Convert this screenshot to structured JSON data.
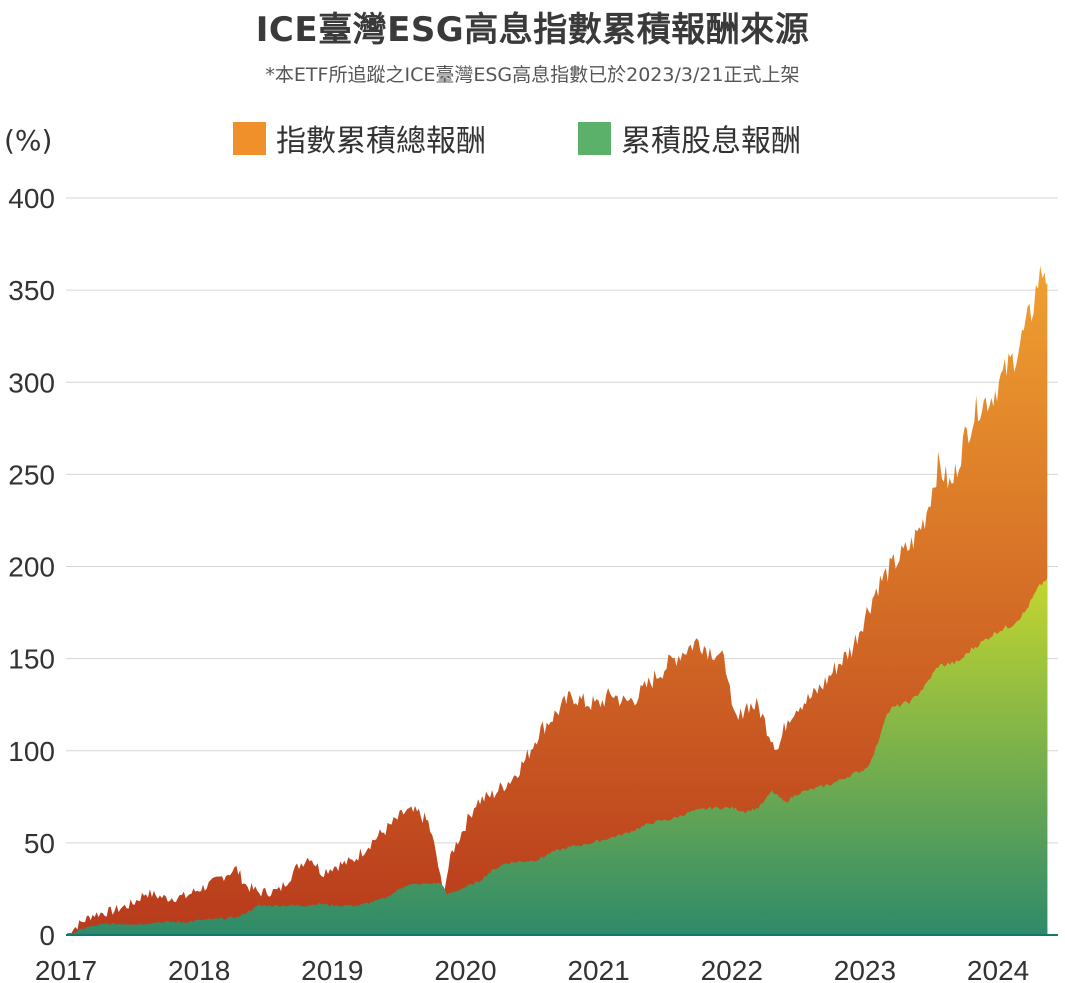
{
  "title": "ICE臺灣ESG高息指數累積報酬來源",
  "subtitle": "*本ETF所追蹤之ICE臺灣ESG高息指數已於2023/3/21正式上架",
  "colors": {
    "total_top": "#F0A030",
    "total_bottom": "#B83A1C",
    "div_top": "#C4D62E",
    "div_bottom": "#2E8A6A",
    "grid": "#D6D6D6",
    "baseline": "#0E7A6E"
  },
  "chart_data": {
    "type": "area",
    "unit_label": "(%)",
    "ylim": [
      0,
      400
    ],
    "yticks": [
      0,
      50,
      100,
      150,
      200,
      250,
      300,
      350,
      400
    ],
    "xlim": [
      2017.0,
      2024.45
    ],
    "xticks": [
      2017,
      2018,
      2019,
      2020,
      2021,
      2022,
      2023,
      2024
    ],
    "grid": true,
    "legend_position": "top-center",
    "series": [
      {
        "name": "指數累積總報酬",
        "color_icon": "#F0902A",
        "points": [
          [
            2017.0,
            0
          ],
          [
            2017.1,
            6
          ],
          [
            2017.2,
            11
          ],
          [
            2017.35,
            13
          ],
          [
            2017.5,
            17
          ],
          [
            2017.6,
            23
          ],
          [
            2017.75,
            20
          ],
          [
            2017.9,
            21
          ],
          [
            2018.0,
            25
          ],
          [
            2018.1,
            28
          ],
          [
            2018.2,
            33
          ],
          [
            2018.28,
            36
          ],
          [
            2018.35,
            27
          ],
          [
            2018.45,
            23
          ],
          [
            2018.6,
            24
          ],
          [
            2018.75,
            38
          ],
          [
            2018.83,
            43
          ],
          [
            2018.92,
            34
          ],
          [
            2019.0,
            37
          ],
          [
            2019.15,
            40
          ],
          [
            2019.3,
            51
          ],
          [
            2019.4,
            57
          ],
          [
            2019.55,
            67
          ],
          [
            2019.65,
            66
          ],
          [
            2019.72,
            61
          ],
          [
            2019.78,
            44
          ],
          [
            2019.83,
            23
          ],
          [
            2019.9,
            45
          ],
          [
            2020.0,
            60
          ],
          [
            2020.08,
            72
          ],
          [
            2020.2,
            76
          ],
          [
            2020.35,
            85
          ],
          [
            2020.45,
            95
          ],
          [
            2020.55,
            110
          ],
          [
            2020.7,
            122
          ],
          [
            2020.8,
            130
          ],
          [
            2020.9,
            126
          ],
          [
            2021.0,
            125
          ],
          [
            2021.1,
            131
          ],
          [
            2021.2,
            126
          ],
          [
            2021.3,
            130
          ],
          [
            2021.45,
            142
          ],
          [
            2021.6,
            152
          ],
          [
            2021.75,
            160
          ],
          [
            2021.82,
            155
          ],
          [
            2021.9,
            153
          ],
          [
            2021.97,
            144
          ],
          [
            2022.0,
            120
          ],
          [
            2022.05,
            116
          ],
          [
            2022.1,
            125
          ],
          [
            2022.2,
            124
          ],
          [
            2022.28,
            110
          ],
          [
            2022.35,
            101
          ],
          [
            2022.42,
            118
          ],
          [
            2022.5,
            125
          ],
          [
            2022.6,
            129
          ],
          [
            2022.7,
            137
          ],
          [
            2022.8,
            147
          ],
          [
            2022.9,
            155
          ],
          [
            2023.0,
            173
          ],
          [
            2023.1,
            190
          ],
          [
            2023.2,
            200
          ],
          [
            2023.35,
            212
          ],
          [
            2023.45,
            226
          ],
          [
            2023.55,
            255
          ],
          [
            2023.65,
            243
          ],
          [
            2023.75,
            270
          ],
          [
            2023.85,
            287
          ],
          [
            2023.95,
            292
          ],
          [
            2024.05,
            305
          ],
          [
            2024.15,
            318
          ],
          [
            2024.25,
            338
          ],
          [
            2024.3,
            355
          ],
          [
            2024.35,
            362
          ],
          [
            2024.37,
            354
          ]
        ]
      },
      {
        "name": "累積股息報酬",
        "color_icon": "#5BB06A",
        "points": [
          [
            2017.0,
            0
          ],
          [
            2017.05,
            1
          ],
          [
            2017.15,
            4
          ],
          [
            2017.3,
            6
          ],
          [
            2017.6,
            6
          ],
          [
            2017.65,
            7
          ],
          [
            2017.9,
            7
          ],
          [
            2018.0,
            8
          ],
          [
            2018.2,
            9
          ],
          [
            2018.3,
            10
          ],
          [
            2018.4,
            14
          ],
          [
            2018.45,
            16
          ],
          [
            2018.8,
            16
          ],
          [
            2018.9,
            17
          ],
          [
            2019.0,
            16
          ],
          [
            2019.2,
            16
          ],
          [
            2019.4,
            20
          ],
          [
            2019.55,
            27
          ],
          [
            2019.75,
            28
          ],
          [
            2019.82,
            28
          ],
          [
            2019.86,
            22
          ],
          [
            2020.0,
            26
          ],
          [
            2020.1,
            29
          ],
          [
            2020.2,
            35
          ],
          [
            2020.3,
            39
          ],
          [
            2020.45,
            40
          ],
          [
            2020.55,
            41
          ],
          [
            2020.65,
            45
          ],
          [
            2020.8,
            48
          ],
          [
            2020.95,
            50
          ],
          [
            2021.05,
            52
          ],
          [
            2021.2,
            55
          ],
          [
            2021.4,
            61
          ],
          [
            2021.55,
            63
          ],
          [
            2021.7,
            67
          ],
          [
            2021.85,
            69
          ],
          [
            2022.0,
            69
          ],
          [
            2022.1,
            67
          ],
          [
            2022.2,
            69
          ],
          [
            2022.25,
            73
          ],
          [
            2022.3,
            78
          ],
          [
            2022.4,
            72
          ],
          [
            2022.5,
            77
          ],
          [
            2022.6,
            79
          ],
          [
            2022.75,
            82
          ],
          [
            2022.9,
            87
          ],
          [
            2023.0,
            90
          ],
          [
            2023.05,
            95
          ],
          [
            2023.1,
            105
          ],
          [
            2023.15,
            118
          ],
          [
            2023.2,
            123
          ],
          [
            2023.35,
            127
          ],
          [
            2023.45,
            135
          ],
          [
            2023.55,
            146
          ],
          [
            2023.7,
            148
          ],
          [
            2023.8,
            155
          ],
          [
            2023.9,
            160
          ],
          [
            2024.0,
            165
          ],
          [
            2024.1,
            168
          ],
          [
            2024.2,
            175
          ],
          [
            2024.3,
            188
          ],
          [
            2024.37,
            194
          ]
        ]
      }
    ]
  }
}
